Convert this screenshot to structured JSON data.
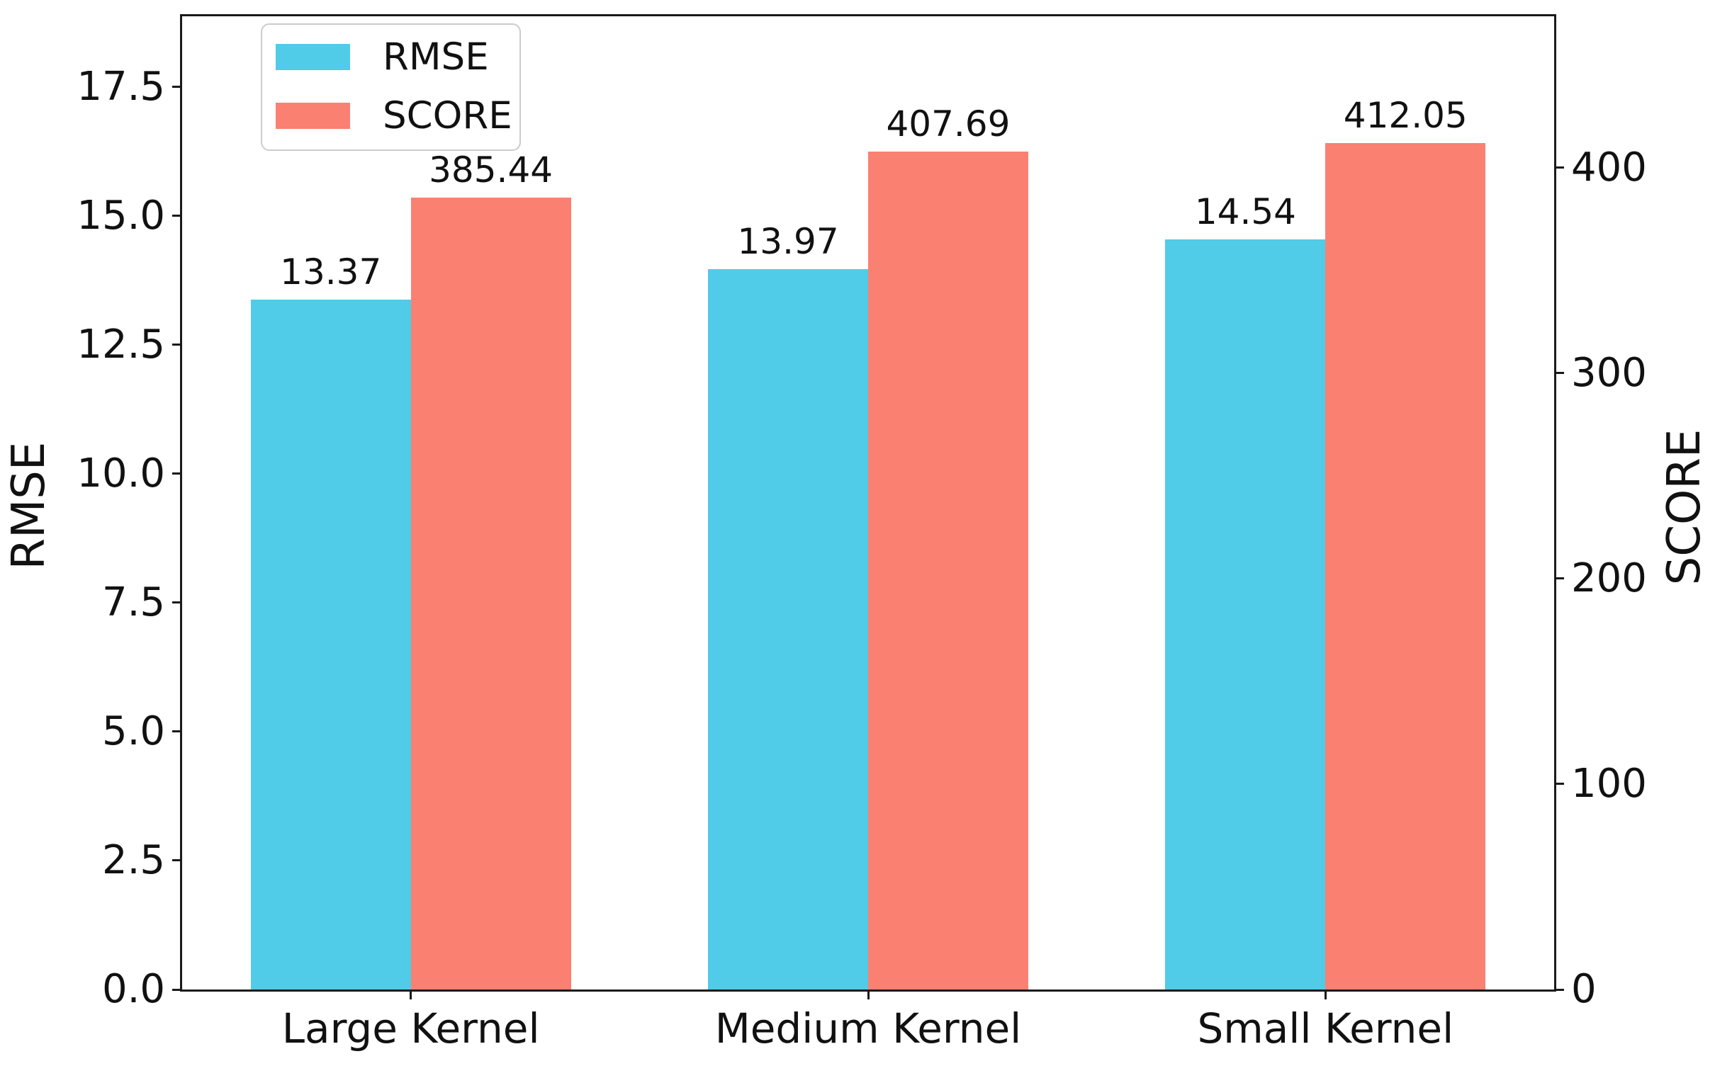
{
  "figure": {
    "background": "#ffffff",
    "text_color": "#111111"
  },
  "chart_data": {
    "type": "bar",
    "title": "",
    "categories": [
      "Large Kernel",
      "Medium Kernel",
      "Small Kernel"
    ],
    "series": [
      {
        "name": "RMSE",
        "axis": "left",
        "color": "#50cbe8",
        "values": [
          13.37,
          13.97,
          14.54
        ],
        "value_labels": [
          "13.37",
          "13.97",
          "14.54"
        ]
      },
      {
        "name": "SCORE",
        "axis": "right",
        "color": "#fa8072",
        "values": [
          385.44,
          407.69,
          412.05
        ],
        "value_labels": [
          "385.44",
          "407.69",
          "412.05"
        ]
      }
    ],
    "left_axis": {
      "label": "RMSE",
      "ticks": [
        0.0,
        2.5,
        5.0,
        7.5,
        10.0,
        12.5,
        15.0,
        17.5
      ],
      "tick_labels": [
        "0.0",
        "2.5",
        "5.0",
        "7.5",
        "10.0",
        "12.5",
        "15.0",
        "17.5"
      ],
      "ylim": [
        0,
        18.87
      ]
    },
    "right_axis": {
      "label": "SCORE",
      "ticks": [
        0,
        100,
        200,
        300,
        400
      ],
      "tick_labels": [
        "0",
        "100",
        "200",
        "300",
        "400"
      ],
      "ylim": [
        0,
        473.7
      ]
    },
    "x_axis": {
      "xlim": [
        -0.5,
        2.5
      ],
      "bar_width": 0.35
    },
    "legend": {
      "location": "upper left",
      "entries": [
        "RMSE",
        "SCORE"
      ]
    },
    "grid": false
  }
}
